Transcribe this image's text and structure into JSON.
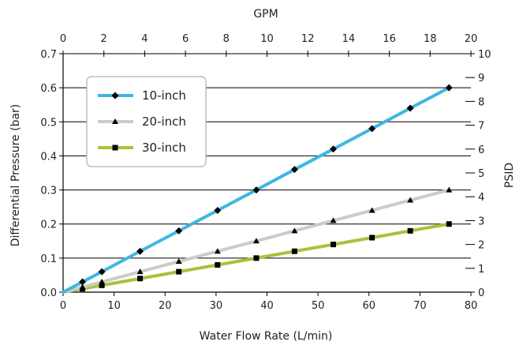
{
  "chart_data": {
    "type": "line",
    "xlabel": "Water Flow Rate (L/min)",
    "ylabel": "Differential Pressure (bar)",
    "x2label": "GPM",
    "y2label": "PSID",
    "xlim": [
      0,
      80
    ],
    "ylim": [
      0,
      0.7
    ],
    "x2lim": [
      0,
      20
    ],
    "y2lim": [
      0,
      10
    ],
    "xticks": [
      "0",
      "10",
      "20",
      "30",
      "40",
      "50",
      "60",
      "70",
      "80"
    ],
    "yticks": [
      "0.0",
      "0.1",
      "0.2",
      "0.3",
      "0.4",
      "0.5",
      "0.6",
      "0.7"
    ],
    "x2ticks": [
      "0",
      "2",
      "4",
      "6",
      "8",
      "10",
      "12",
      "14",
      "16",
      "18",
      "20"
    ],
    "y2ticks": [
      "0",
      "1",
      "2",
      "3",
      "4",
      "5",
      "6",
      "7",
      "8",
      "9",
      "10"
    ],
    "grid": "horizontal",
    "legend_position": "top-left",
    "series": [
      {
        "name": "10-inch",
        "color": "#3fb7e3",
        "marker": "diamond",
        "x": [
          0,
          3.8,
          7.6,
          15.1,
          22.7,
          30.3,
          37.9,
          45.4,
          53.0,
          60.6,
          68.1,
          75.7
        ],
        "y": [
          0,
          0.03,
          0.06,
          0.12,
          0.18,
          0.24,
          0.3,
          0.36,
          0.42,
          0.48,
          0.54,
          0.6
        ]
      },
      {
        "name": "20-inch",
        "color": "#c9cdc8",
        "marker": "triangle",
        "x": [
          0,
          3.8,
          7.6,
          15.1,
          22.7,
          30.3,
          37.9,
          45.4,
          53.0,
          60.6,
          68.1,
          75.7
        ],
        "y": [
          0,
          0.015,
          0.03,
          0.06,
          0.09,
          0.12,
          0.15,
          0.18,
          0.21,
          0.24,
          0.27,
          0.3
        ]
      },
      {
        "name": "30-inch",
        "color": "#a8c23a",
        "marker": "square",
        "x": [
          0,
          3.8,
          7.6,
          15.1,
          22.7,
          30.3,
          37.9,
          45.4,
          53.0,
          60.6,
          68.1,
          75.7
        ],
        "y": [
          0,
          0.01,
          0.02,
          0.04,
          0.06,
          0.08,
          0.1,
          0.12,
          0.14,
          0.16,
          0.18,
          0.2
        ]
      }
    ]
  }
}
